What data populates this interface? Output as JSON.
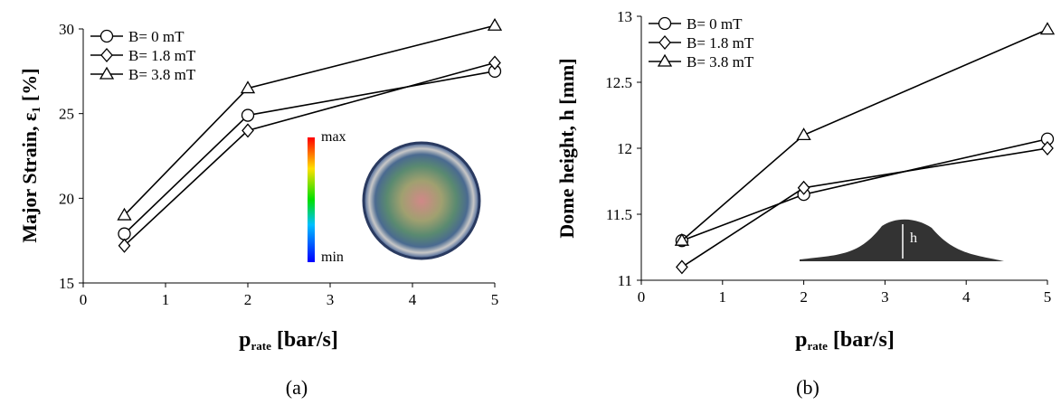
{
  "chart_data": [
    {
      "type": "line",
      "caption": "(a)",
      "y_label": {
        "main": "Major Strain, ε",
        "sub": "1",
        "unit": "[%]"
      },
      "x_label": {
        "main": "p",
        "sub": "rate",
        "unit": "[bar/s]"
      },
      "x": [
        0.5,
        2,
        5
      ],
      "xlim": [
        0,
        5
      ],
      "xticks": [
        0,
        1,
        2,
        3,
        4,
        5
      ],
      "ylim": [
        15,
        30
      ],
      "yticks": [
        15,
        20,
        25,
        30
      ],
      "grid": false,
      "legend": "top-left",
      "series": [
        {
          "name": "B= 0 mT",
          "color": "#000000",
          "marker": "circle",
          "values": [
            17.9,
            24.9,
            27.5
          ]
        },
        {
          "name": "B= 1.8 mT",
          "color": "#000000",
          "marker": "diamond",
          "values": [
            17.2,
            24.0,
            28.0
          ]
        },
        {
          "name": "B= 3.8 mT",
          "color": "#000000",
          "marker": "triangle",
          "values": [
            19.0,
            26.5,
            30.2
          ]
        }
      ],
      "annotations": [
        "max",
        "min"
      ]
    },
    {
      "type": "line",
      "caption": "(b)",
      "y_label": "Dome height, h [mm]",
      "x_label": {
        "main": "p",
        "sub": "rate",
        "unit": "[bar/s]"
      },
      "x": [
        0.5,
        2,
        5
      ],
      "xlim": [
        0,
        5
      ],
      "xticks": [
        0,
        1,
        2,
        3,
        4,
        5
      ],
      "ylim": [
        11,
        13
      ],
      "yticks": [
        11,
        11.5,
        12,
        12.5,
        13
      ],
      "grid": false,
      "legend": "top-left",
      "series": [
        {
          "name": "B= 0 mT",
          "color": "#000000",
          "marker": "circle",
          "values": [
            11.3,
            11.65,
            12.07
          ]
        },
        {
          "name": "B= 1.8 mT",
          "color": "#000000",
          "marker": "diamond",
          "values": [
            11.1,
            11.7,
            12.0
          ]
        },
        {
          "name": "B= 3.8 mT",
          "color": "#000000",
          "marker": "triangle",
          "values": [
            11.3,
            12.1,
            12.9
          ]
        }
      ],
      "annotations": [
        "h"
      ]
    }
  ]
}
